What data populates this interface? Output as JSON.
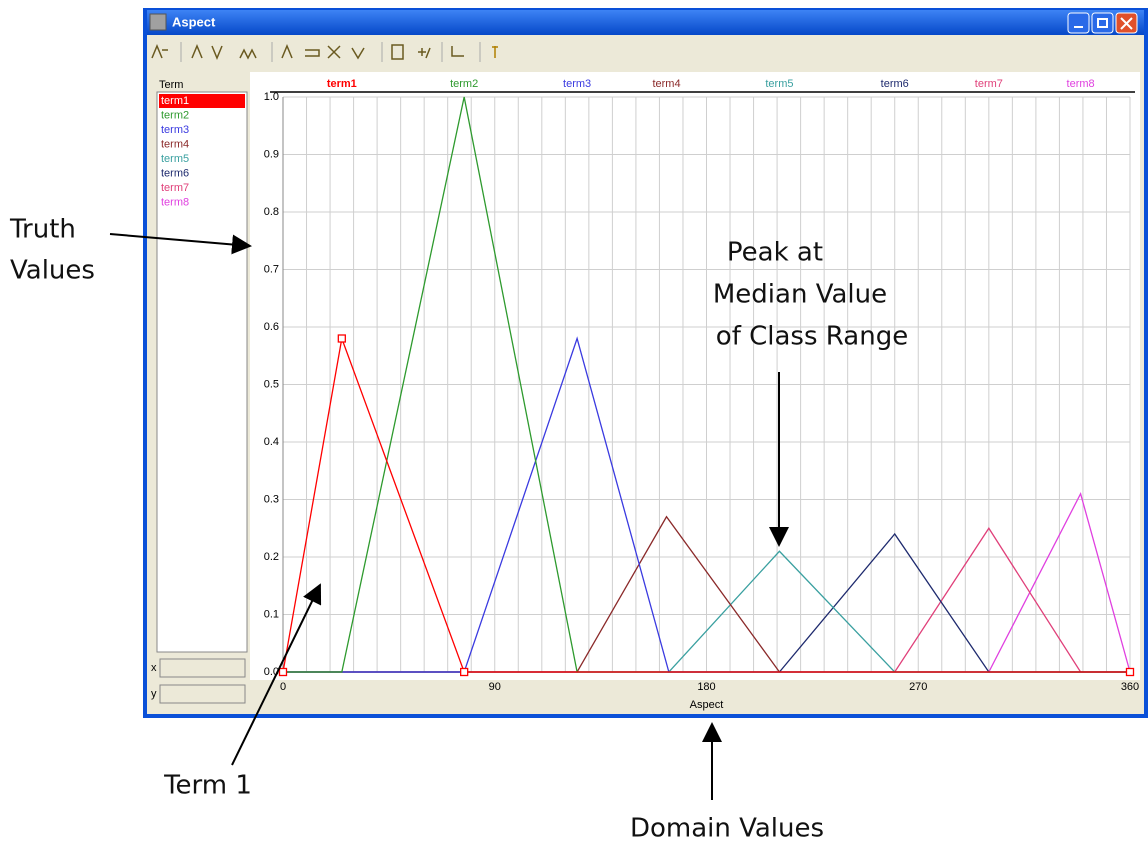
{
  "window": {
    "title": "Aspect"
  },
  "panel": {
    "term_list_label": "Term",
    "x_field_label": "x",
    "y_field_label": "y"
  },
  "annotations": {
    "truth_values": [
      "Truth",
      "Values"
    ],
    "peak": [
      "Peak at",
      "Median Value",
      "of Class Range"
    ],
    "term1": "Term 1",
    "domain_values": "Domain Values"
  },
  "chart_data": {
    "type": "line",
    "x_label": "Aspect",
    "xlim": [
      0,
      360
    ],
    "xticks": [
      0,
      90,
      180,
      270,
      360
    ],
    "ylim": [
      0,
      1
    ],
    "yticks": [
      {
        "value": 1,
        "label": "1.0"
      },
      0.9,
      0.8,
      0.7,
      0.6,
      0.5,
      0.4,
      0.3,
      0.2,
      0.1,
      {
        "value": 0,
        "label": "0.0"
      }
    ],
    "grid": true,
    "series": [
      {
        "name": "term1",
        "color": "#ff0000",
        "x": [
          0,
          25,
          77,
          360
        ],
        "values": [
          0,
          0.58,
          0,
          0
        ]
      },
      {
        "name": "term2",
        "color": "#2e9a2e",
        "x": [
          0,
          25,
          77,
          125,
          360
        ],
        "values": [
          0,
          0,
          1,
          0,
          0
        ]
      },
      {
        "name": "term3",
        "color": "#3a3ae0",
        "x": [
          0,
          77,
          125,
          164,
          360
        ],
        "values": [
          0,
          0,
          0.58,
          0,
          0
        ]
      },
      {
        "name": "term4",
        "color": "#8b2a2a",
        "x": [
          0,
          125,
          163,
          211,
          360
        ],
        "values": [
          0,
          0,
          0.27,
          0,
          0
        ]
      },
      {
        "name": "term5",
        "color": "#3aa0a0",
        "x": [
          0,
          164,
          211,
          260,
          360
        ],
        "values": [
          0,
          0,
          0.21,
          0,
          0
        ]
      },
      {
        "name": "term6",
        "color": "#1e2a6e",
        "x": [
          0,
          211,
          260,
          300,
          360
        ],
        "values": [
          0,
          0,
          0.24,
          0,
          0
        ]
      },
      {
        "name": "term7",
        "color": "#e0407a",
        "x": [
          0,
          260,
          300,
          339,
          360
        ],
        "values": [
          0,
          0,
          0.25,
          0,
          0
        ]
      },
      {
        "name": "term8",
        "color": "#e040e0",
        "x": [
          0,
          300,
          339,
          360
        ],
        "values": [
          0,
          0,
          0.31,
          0
        ]
      }
    ]
  }
}
